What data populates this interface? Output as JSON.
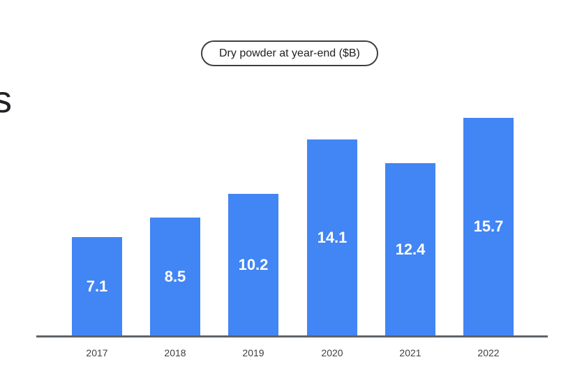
{
  "page": {
    "clipped_heading_fragment": "s"
  },
  "chart": {
    "title": "Dry powder at year-end ($B)"
  },
  "chart_data": {
    "type": "bar",
    "title": "Dry powder at year-end ($B)",
    "categories": [
      "2017",
      "2018",
      "2019",
      "2020",
      "2021",
      "2022"
    ],
    "values": [
      7.1,
      8.5,
      10.2,
      14.1,
      12.4,
      15.7
    ],
    "value_labels": [
      "7.1",
      "8.5",
      "10.2",
      "14.1",
      "12.4",
      "15.7"
    ],
    "xlabel": "",
    "ylabel": "",
    "ylim": [
      0,
      16.5
    ],
    "grid": false,
    "legend": false,
    "value_labels_position": "centered-inside-bars",
    "colors": {
      "bar": "#4285F4",
      "value_label": "#FFFFFF",
      "axis_line": "#5F6368",
      "title_text": "#202124",
      "pill_border": "#3C4043",
      "tick_label": "#3C4043",
      "background": "#FFFFFF"
    }
  }
}
